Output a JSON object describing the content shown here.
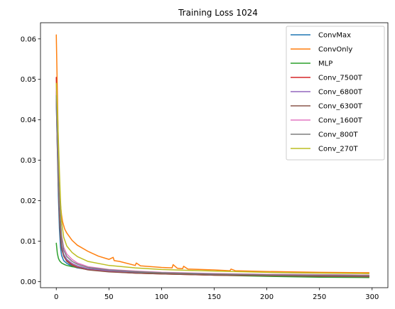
{
  "chart_data": {
    "type": "line",
    "title": "Training Loss 1024",
    "xlabel": "",
    "ylabel": "",
    "xlim": [
      -15,
      315
    ],
    "ylim": [
      -0.0015,
      0.064
    ],
    "x_ticks": [
      0,
      50,
      100,
      150,
      200,
      250,
      300
    ],
    "y_ticks": [
      0.0,
      0.01,
      0.02,
      0.03,
      0.04,
      0.05,
      0.06
    ],
    "x_tick_labels": [
      "0",
      "50",
      "100",
      "150",
      "200",
      "250",
      "300"
    ],
    "y_tick_labels": [
      "0.00",
      "0.01",
      "0.02",
      "0.03",
      "0.04",
      "0.05",
      "0.06"
    ],
    "grid": false,
    "legend_position": "top-right",
    "series": [
      {
        "name": "ConvMax",
        "color": "#1f77b4",
        "x": [
          0,
          1,
          2,
          3,
          4,
          5,
          7,
          10,
          15,
          20,
          30,
          50,
          75,
          100,
          150,
          200,
          250,
          297
        ],
        "y": [
          0.0445,
          0.033,
          0.021,
          0.013,
          0.0085,
          0.0065,
          0.0052,
          0.0045,
          0.0038,
          0.0034,
          0.003,
          0.0025,
          0.0022,
          0.002,
          0.0018,
          0.0016,
          0.0015,
          0.0014
        ]
      },
      {
        "name": "ConvOnly",
        "color": "#ff7f0e",
        "x": [
          0,
          1,
          2,
          3,
          4,
          5,
          6,
          8,
          10,
          15,
          20,
          30,
          40,
          50,
          54,
          55,
          60,
          75,
          76,
          80,
          100,
          110,
          111,
          115,
          120,
          121,
          125,
          150,
          165,
          166,
          170,
          200,
          250,
          297
        ],
        "y": [
          0.061,
          0.047,
          0.033,
          0.025,
          0.019,
          0.0165,
          0.0148,
          0.013,
          0.012,
          0.0102,
          0.009,
          0.0075,
          0.0063,
          0.0055,
          0.006,
          0.0052,
          0.005,
          0.004,
          0.0046,
          0.0039,
          0.0035,
          0.0034,
          0.0042,
          0.0033,
          0.0032,
          0.0038,
          0.0031,
          0.0029,
          0.0027,
          0.0031,
          0.0027,
          0.0025,
          0.0023,
          0.0022
        ]
      },
      {
        "name": "MLP",
        "color": "#2ca02c",
        "x": [
          0,
          1,
          2,
          3,
          5,
          8,
          10,
          15,
          20,
          30,
          50,
          75,
          100,
          150,
          200,
          250,
          297
        ],
        "y": [
          0.0095,
          0.007,
          0.0058,
          0.0052,
          0.0046,
          0.0042,
          0.004,
          0.0037,
          0.0035,
          0.0032,
          0.0028,
          0.0024,
          0.002,
          0.0016,
          0.0013,
          0.0011,
          0.001
        ]
      },
      {
        "name": "Conv_7500T",
        "color": "#d62728",
        "x": [
          0,
          1,
          2,
          3,
          4,
          5,
          7,
          10,
          15,
          20,
          30,
          50,
          75,
          100,
          150,
          200,
          250,
          297
        ],
        "y": [
          0.0505,
          0.036,
          0.025,
          0.017,
          0.0115,
          0.0085,
          0.0065,
          0.0052,
          0.0042,
          0.0036,
          0.003,
          0.0025,
          0.0021,
          0.0019,
          0.0016,
          0.0015,
          0.0014,
          0.0013
        ]
      },
      {
        "name": "Conv_6800T",
        "color": "#9467bd",
        "x": [
          0,
          1,
          2,
          3,
          4,
          5,
          7,
          10,
          15,
          20,
          30,
          50,
          75,
          100,
          150,
          200,
          250,
          297
        ],
        "y": [
          0.045,
          0.033,
          0.024,
          0.017,
          0.012,
          0.009,
          0.0068,
          0.0055,
          0.0045,
          0.0039,
          0.0032,
          0.0027,
          0.0024,
          0.0022,
          0.0019,
          0.0018,
          0.0017,
          0.0016
        ]
      },
      {
        "name": "Conv_6300T",
        "color": "#8c564b",
        "x": [
          0,
          1,
          2,
          3,
          4,
          5,
          7,
          10,
          15,
          20,
          30,
          50,
          75,
          100,
          150,
          200,
          250,
          297
        ],
        "y": [
          0.047,
          0.034,
          0.024,
          0.016,
          0.011,
          0.0082,
          0.0063,
          0.005,
          0.004,
          0.0035,
          0.0029,
          0.0024,
          0.0021,
          0.0019,
          0.0016,
          0.0015,
          0.0013,
          0.0012
        ]
      },
      {
        "name": "Conv_1600T",
        "color": "#e377c2",
        "x": [
          0,
          1,
          2,
          3,
          4,
          5,
          7,
          10,
          15,
          20,
          30,
          50,
          75,
          100,
          150,
          200,
          250,
          297
        ],
        "y": [
          0.048,
          0.036,
          0.027,
          0.02,
          0.015,
          0.0115,
          0.0085,
          0.0068,
          0.0055,
          0.0046,
          0.0037,
          0.003,
          0.0026,
          0.0023,
          0.002,
          0.0018,
          0.0017,
          0.0016
        ]
      },
      {
        "name": "Conv_800T",
        "color": "#7f7f7f",
        "x": [
          0,
          1,
          2,
          3,
          4,
          5,
          7,
          10,
          15,
          20,
          30,
          50,
          75,
          100,
          150,
          200,
          250,
          297
        ],
        "y": [
          0.046,
          0.035,
          0.026,
          0.02,
          0.015,
          0.011,
          0.0078,
          0.0062,
          0.005,
          0.0043,
          0.0035,
          0.0029,
          0.0025,
          0.0022,
          0.0019,
          0.0017,
          0.0016,
          0.0015
        ]
      },
      {
        "name": "Conv_270T",
        "color": "#bcbd22",
        "x": [
          0,
          1,
          2,
          3,
          4,
          5,
          7,
          10,
          15,
          20,
          30,
          50,
          75,
          100,
          150,
          200,
          250,
          297
        ],
        "y": [
          0.049,
          0.043,
          0.035,
          0.027,
          0.02,
          0.015,
          0.011,
          0.0088,
          0.0072,
          0.0062,
          0.005,
          0.004,
          0.0034,
          0.003,
          0.0026,
          0.0023,
          0.0021,
          0.002
        ]
      }
    ]
  }
}
